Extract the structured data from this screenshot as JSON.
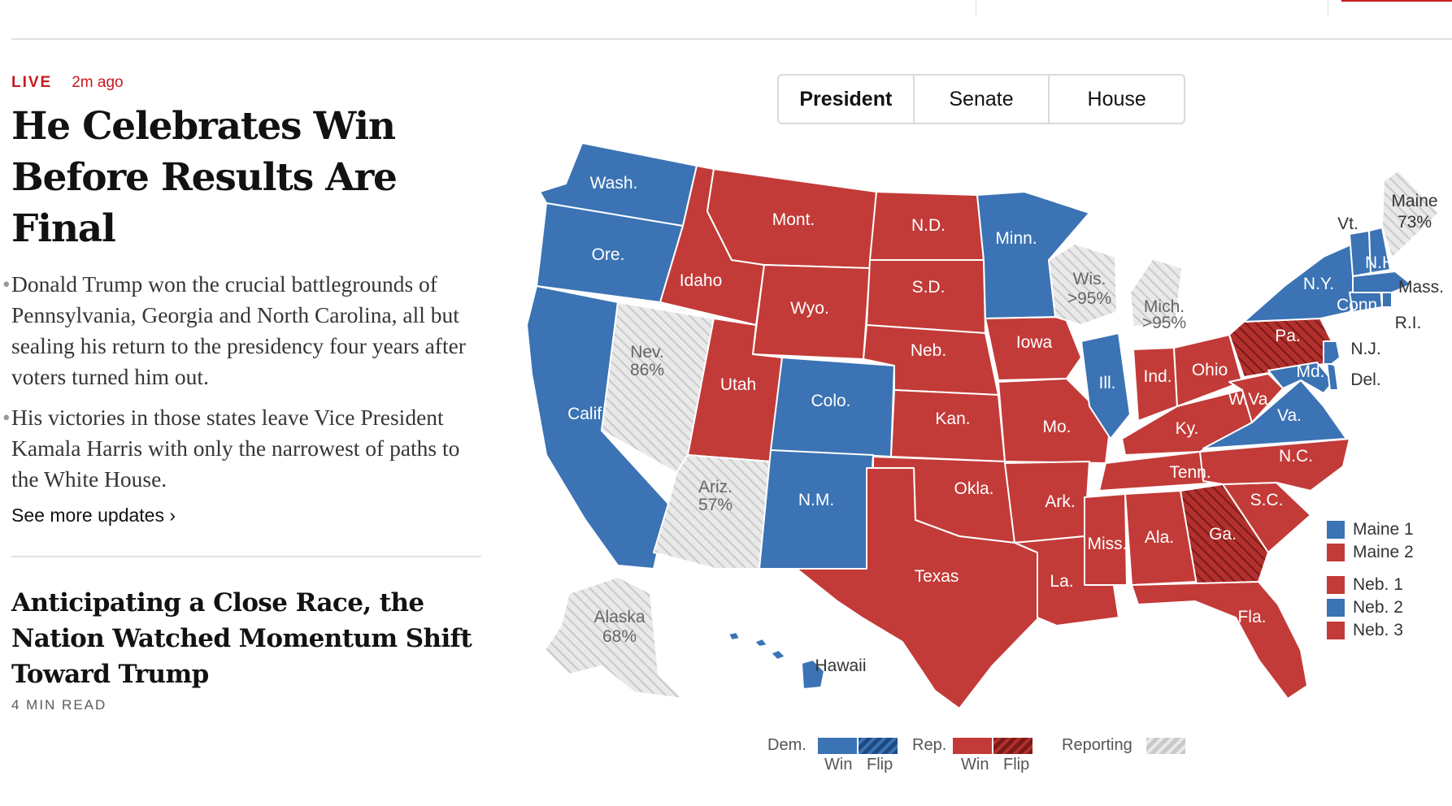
{
  "colors": {
    "dem": "#3b73b4",
    "rep": "#c23b38",
    "rep_flip": "#8e1f1d",
    "reporting": "#dcdcdc",
    "live": "#c9191e"
  },
  "left": {
    "live_label": "LIVE",
    "time_ago": "2m ago",
    "headline": "He Celebrates Win Before Results Are Final",
    "bullets": [
      "Donald Trump won the crucial battlegrounds of Pennsylvania, Georgia and North Carolina, all but sealing his return to the presidency four years after voters turned him out.",
      "His victories in those states leave Vice President Kamala Harris with only the narrowest of paths to the White House."
    ],
    "see_more": "See more updates ›",
    "story2_title": "Anticipating a Close Race, the Nation Watched Momentum Shift Toward Trump",
    "story2_read": "4 MIN READ"
  },
  "tabs": [
    "President",
    "Senate",
    "House"
  ],
  "active_tab": "President",
  "states": [
    {
      "name": "Wash.",
      "result": "dem"
    },
    {
      "name": "Ore.",
      "result": "dem"
    },
    {
      "name": "Calif.",
      "result": "dem"
    },
    {
      "name": "Nev.",
      "pct": "86%",
      "result": "reporting"
    },
    {
      "name": "Idaho",
      "result": "rep"
    },
    {
      "name": "Mont.",
      "result": "rep"
    },
    {
      "name": "Wyo.",
      "result": "rep"
    },
    {
      "name": "Utah",
      "result": "rep"
    },
    {
      "name": "Ariz.",
      "pct": "57%",
      "result": "reporting"
    },
    {
      "name": "Colo.",
      "result": "dem"
    },
    {
      "name": "N.M.",
      "result": "dem"
    },
    {
      "name": "N.D.",
      "result": "rep"
    },
    {
      "name": "S.D.",
      "result": "rep"
    },
    {
      "name": "Neb.",
      "result": "rep"
    },
    {
      "name": "Kan.",
      "result": "rep"
    },
    {
      "name": "Okla.",
      "result": "rep"
    },
    {
      "name": "Texas",
      "result": "rep"
    },
    {
      "name": "Minn.",
      "result": "dem"
    },
    {
      "name": "Iowa",
      "result": "rep"
    },
    {
      "name": "Mo.",
      "result": "rep"
    },
    {
      "name": "Ark.",
      "result": "rep"
    },
    {
      "name": "La.",
      "result": "rep"
    },
    {
      "name": "Wis.",
      "pct": ">95%",
      "result": "reporting"
    },
    {
      "name": "Ill.",
      "result": "dem"
    },
    {
      "name": "Mich.",
      "pct": ">95%",
      "result": "reporting"
    },
    {
      "name": "Ind.",
      "result": "rep"
    },
    {
      "name": "Ohio",
      "result": "rep"
    },
    {
      "name": "Ky.",
      "result": "rep"
    },
    {
      "name": "Tenn.",
      "result": "rep"
    },
    {
      "name": "Miss.",
      "result": "rep"
    },
    {
      "name": "Ala.",
      "result": "rep"
    },
    {
      "name": "Ga.",
      "result": "rep_flip"
    },
    {
      "name": "Fla.",
      "result": "rep"
    },
    {
      "name": "S.C.",
      "result": "rep"
    },
    {
      "name": "N.C.",
      "result": "rep"
    },
    {
      "name": "Va.",
      "result": "dem"
    },
    {
      "name": "W.Va.",
      "result": "rep"
    },
    {
      "name": "Pa.",
      "result": "rep_flip"
    },
    {
      "name": "N.Y.",
      "result": "dem"
    },
    {
      "name": "Md.",
      "result": "dem"
    },
    {
      "name": "Del.",
      "result": "dem"
    },
    {
      "name": "N.J.",
      "result": "dem"
    },
    {
      "name": "Conn.",
      "result": "dem"
    },
    {
      "name": "R.I.",
      "result": "dem"
    },
    {
      "name": "Mass.",
      "result": "dem"
    },
    {
      "name": "Vt.",
      "result": "dem"
    },
    {
      "name": "N.H.",
      "result": "dem"
    },
    {
      "name": "Maine",
      "pct": "73%",
      "result": "reporting"
    },
    {
      "name": "Alaska",
      "pct": "68%",
      "result": "reporting"
    },
    {
      "name": "Hawaii",
      "result": "dem"
    }
  ],
  "districts": [
    {
      "name": "Maine 1",
      "result": "dem"
    },
    {
      "name": "Maine 2",
      "result": "rep"
    },
    {
      "name": "Neb. 1",
      "result": "rep"
    },
    {
      "name": "Neb. 2",
      "result": "dem"
    },
    {
      "name": "Neb. 3",
      "result": "rep"
    }
  ],
  "legend": {
    "dem": "Dem.",
    "rep": "Rep.",
    "win": "Win",
    "flip": "Flip",
    "reporting": "Reporting"
  }
}
